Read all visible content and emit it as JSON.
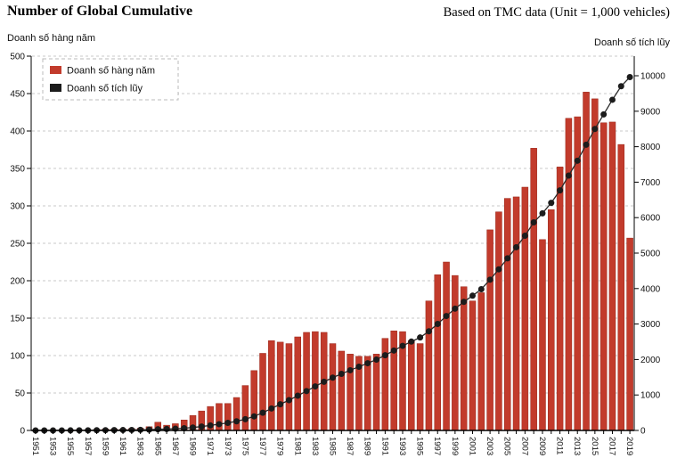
{
  "header": {
    "title": "Number of Global Cumulative",
    "subtitle": "Based on TMC data (Unit = 1,000 vehicles)"
  },
  "left_axis_title": "Doanh số hàng năm",
  "right_axis_title": "Doanh số tích lũy",
  "legend": {
    "items": [
      {
        "label": "Doanh số hàng năm",
        "color": "#c23b2c",
        "marker": "square"
      },
      {
        "label": "Doanh số tích lũy",
        "color": "#1c1c1c",
        "marker": "square"
      }
    ]
  },
  "colors": {
    "bar_fill": "#c23b2c",
    "bar_stroke": "#992619",
    "dot_fill": "#1c1c1c",
    "line_stroke": "#2a2a2a",
    "gridline": "#c8c8c8",
    "axis": "#000000",
    "legend_border": "#bbbbbb"
  },
  "chart_data": {
    "type": "bar",
    "title": "Number of Global Cumulative",
    "subtitle": "Based on TMC data (Unit = 1,000 vehicles)",
    "categories": [
      1951,
      1952,
      1953,
      1954,
      1955,
      1956,
      1957,
      1958,
      1959,
      1960,
      1961,
      1962,
      1963,
      1964,
      1965,
      1966,
      1967,
      1968,
      1969,
      1970,
      1971,
      1972,
      1973,
      1974,
      1975,
      1976,
      1977,
      1978,
      1979,
      1980,
      1981,
      1982,
      1983,
      1984,
      1985,
      1986,
      1987,
      1988,
      1989,
      1990,
      1991,
      1992,
      1993,
      1994,
      1995,
      1996,
      1997,
      1998,
      1999,
      2000,
      2001,
      2002,
      2003,
      2004,
      2005,
      2006,
      2007,
      2008,
      2009,
      2010,
      2011,
      2012,
      2013,
      2014,
      2015,
      2016,
      2017,
      2018,
      2019
    ],
    "x_tick_labels_every": 2,
    "series": [
      {
        "name": "Doanh số hàng năm",
        "type": "bar",
        "axis": "left",
        "color": "#c23b2c",
        "values": [
          0.2,
          0.3,
          0.3,
          0.5,
          0.7,
          1,
          1,
          1.5,
          2,
          2,
          2,
          2.5,
          3,
          5,
          11,
          7,
          9,
          14,
          20,
          26,
          32,
          36,
          36,
          44,
          60,
          80,
          103,
          120,
          118,
          116,
          125,
          131,
          132,
          131,
          116,
          106,
          102,
          99,
          99,
          102,
          123,
          133,
          132,
          120,
          116,
          173,
          208,
          225,
          207,
          192,
          173,
          184,
          268,
          292,
          310,
          312,
          325,
          377,
          255,
          295,
          352,
          417,
          419,
          452,
          443,
          411,
          412,
          382,
          257
        ]
      },
      {
        "name": "Doanh số tích lũy",
        "type": "line",
        "axis": "right",
        "color": "#1c1c1c",
        "derived": "running-sum-of-bar-series"
      }
    ],
    "left_axis": {
      "label": "Doanh số hàng năm",
      "min": 0,
      "max": 500,
      "tick_step": 50
    },
    "right_axis": {
      "label": "Doanh số tích lũy",
      "min": 0,
      "tick_min": 0,
      "tick_max": 10000,
      "tick_step": 1000,
      "max": 10553
    },
    "grid": {
      "horizontal": true,
      "style": "dashed"
    },
    "legend_position": "top-left"
  }
}
